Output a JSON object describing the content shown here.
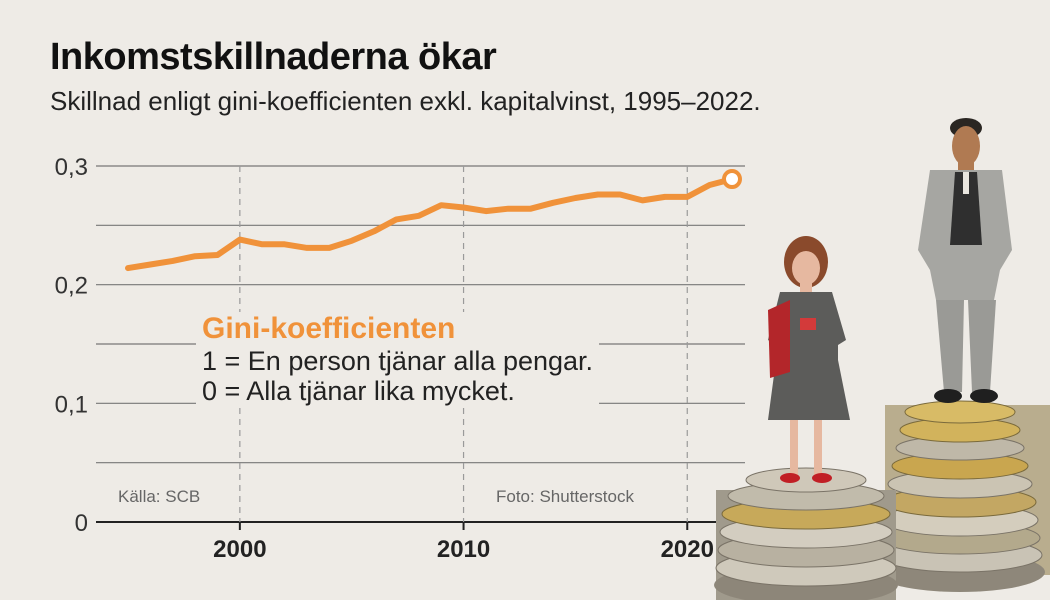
{
  "header": {
    "title": "Inkomstskillnaderna ökar",
    "subtitle": "Skillnad enligt gini-koefficienten exkl. kapitalvinst, 1995–2022."
  },
  "legend": {
    "title": "Gini-koefficienten",
    "line1": "1 = En person tjänar alla pengar.",
    "line2": "0 = Alla tjänar lika mycket."
  },
  "credits": {
    "source": "Källa: SCB",
    "photo": "Foto: Shutterstock"
  },
  "colors": {
    "line": "#f0923a",
    "background": "#eeebe6",
    "grid": "#777777"
  },
  "chart_data": {
    "type": "line",
    "title": "Inkomstskillnaderna ökar",
    "subtitle": "Skillnad enligt gini-koefficienten exkl. kapitalvinst, 1995–2022.",
    "xlabel": "",
    "ylabel": "",
    "xlim": [
      1994,
      2022
    ],
    "ylim": [
      0,
      0.3
    ],
    "yticks": [
      0,
      0.1,
      0.2,
      0.3
    ],
    "ytick_labels": [
      "0",
      "0,1",
      "0,2",
      "0,3"
    ],
    "xticks": [
      2000,
      2010,
      2020
    ],
    "xtick_labels": [
      "2000",
      "2010",
      "2020"
    ],
    "grid": true,
    "series": [
      {
        "name": "Gini-koefficienten",
        "x": [
          1995,
          1996,
          1997,
          1998,
          1999,
          2000,
          2001,
          2002,
          2003,
          2004,
          2005,
          2006,
          2007,
          2008,
          2009,
          2010,
          2011,
          2012,
          2013,
          2014,
          2015,
          2016,
          2017,
          2018,
          2019,
          2020,
          2021,
          2022
        ],
        "values": [
          0.214,
          0.217,
          0.22,
          0.224,
          0.225,
          0.238,
          0.234,
          0.234,
          0.231,
          0.231,
          0.237,
          0.245,
          0.255,
          0.258,
          0.267,
          0.265,
          0.262,
          0.264,
          0.264,
          0.269,
          0.273,
          0.276,
          0.276,
          0.271,
          0.274,
          0.274,
          0.284,
          0.289
        ]
      }
    ]
  }
}
